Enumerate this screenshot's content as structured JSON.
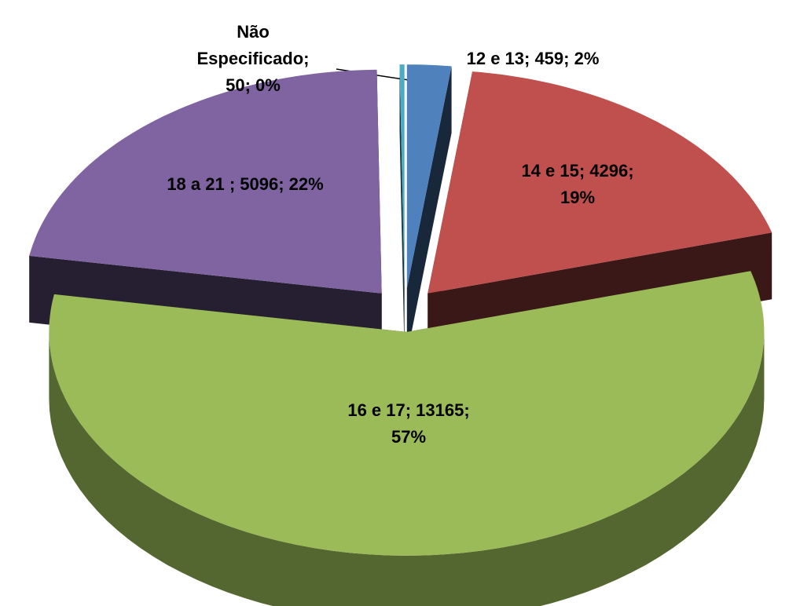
{
  "chart_data": {
    "type": "pie3d",
    "categories": [
      "12 e 13",
      "14 e 15",
      "16 e 17",
      "18 a 21 ",
      "Não Especificado"
    ],
    "values": [
      459,
      4296,
      13165,
      5096,
      50
    ],
    "value_labels": [
      "12 e 13; 459; 2%",
      "14 e 15; 4296; 19%",
      "16 e 17; 13165; 57%",
      "18 a 21 ; 5096; 22%",
      "Não Especificado; 50; 0%"
    ],
    "colors": [
      "#4f81bd",
      "#c0504d",
      "#9bbb59",
      "#8064a2",
      "#4bacc6"
    ],
    "exploded": true
  }
}
